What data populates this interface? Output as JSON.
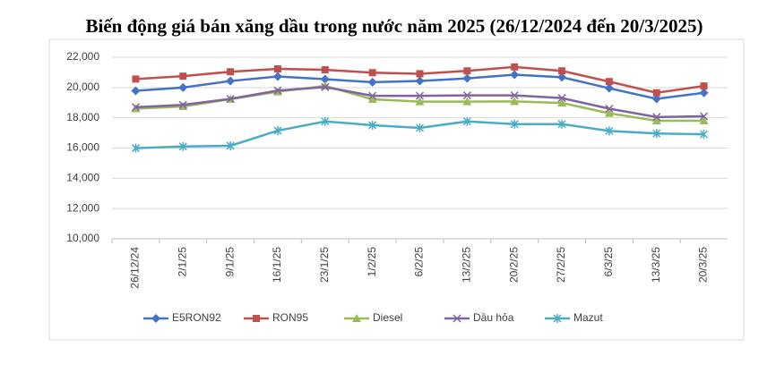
{
  "chart_data": {
    "type": "line",
    "title": "Biến động giá bán xăng dầu trong nước năm 2025 (26/12/2024 đến 20/3/2025)",
    "categories": [
      "26/12/24",
      "2/1/25",
      "9/1/25",
      "16/1/25",
      "23/1/25",
      "1/2/25",
      "6/2/25",
      "13/2/25",
      "20/2/25",
      "27/2/25",
      "6/3/25",
      "13/3/25",
      "20/3/25"
    ],
    "series": [
      {
        "name": "E5RON92",
        "color": "#4472c4",
        "marker": "diamond",
        "values": [
          19780,
          20000,
          20430,
          20730,
          20550,
          20350,
          20430,
          20600,
          20850,
          20680,
          19950,
          19250,
          19650
        ]
      },
      {
        "name": "RON95",
        "color": "#c0504d",
        "marker": "square",
        "values": [
          20560,
          20750,
          21040,
          21230,
          21170,
          20980,
          20910,
          21100,
          21360,
          21100,
          20390,
          19650,
          20100
        ]
      },
      {
        "name": "Diesel",
        "color": "#9bbb59",
        "marker": "triangle",
        "values": [
          18600,
          18750,
          19230,
          19720,
          20110,
          19220,
          19070,
          19070,
          19080,
          18980,
          18300,
          17800,
          17800
        ]
      },
      {
        "name": "Dầu hỏa",
        "color": "#8064a2",
        "marker": "x",
        "values": [
          18700,
          18850,
          19250,
          19800,
          20030,
          19450,
          19450,
          19480,
          19480,
          19300,
          18600,
          18050,
          18100
        ]
      },
      {
        "name": "Mazut",
        "color": "#4bacc6",
        "marker": "star",
        "values": [
          15990,
          16100,
          16150,
          17150,
          17760,
          17510,
          17330,
          17760,
          17580,
          17580,
          17130,
          16960,
          16910
        ]
      }
    ],
    "ylim": [
      10000,
      22000
    ],
    "yticks": [
      {
        "value": 10000,
        "label": "10,000"
      },
      {
        "value": 12000,
        "label": "12,000"
      },
      {
        "value": 14000,
        "label": "14,000"
      },
      {
        "value": 16000,
        "label": "16,000"
      },
      {
        "value": 18000,
        "label": "18,000"
      },
      {
        "value": 20000,
        "label": "20,000"
      },
      {
        "value": 22000,
        "label": "22,000"
      }
    ],
    "grid": true,
    "legend": "bottom"
  }
}
